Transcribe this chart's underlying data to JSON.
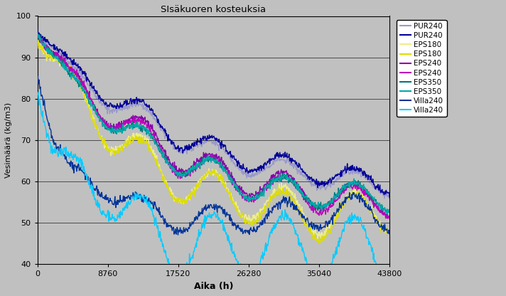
{
  "title": "SIsäkuoren kosteuksia",
  "xlabel": "Aika (h)",
  "ylabel": "Vesimäärä (kg/m3)",
  "xlim": [
    0,
    43800
  ],
  "ylim": [
    40,
    100
  ],
  "xticks": [
    0,
    8760,
    17520,
    26280,
    35040,
    43800
  ],
  "yticks": [
    40,
    50,
    60,
    70,
    80,
    90,
    100
  ],
  "background_color": "#c0c0c0",
  "plot_bg_color": "#c0c0c0",
  "legend_entries": [
    "PUR240",
    "PUR240",
    "EPS180",
    "EPS180",
    "EPS240",
    "EPS240",
    "EPS350",
    "EPS350",
    "Villa240",
    "Villa240"
  ],
  "line_colors": [
    "#9999cc",
    "#000099",
    "#eeee88",
    "#dddd00",
    "#8800aa",
    "#bb00bb",
    "#007777",
    "#00aaaa",
    "#003399",
    "#00ccff"
  ],
  "figsize": [
    7.12,
    4.16
  ],
  "dpi": 100
}
